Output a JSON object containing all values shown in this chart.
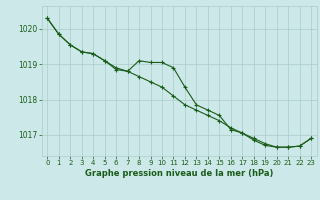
{
  "line1_x": [
    0,
    1,
    2,
    3,
    4,
    5,
    6,
    7,
    8,
    9,
    10,
    11,
    12,
    13,
    14,
    15,
    16,
    17,
    18,
    19,
    20,
    21,
    22,
    23
  ],
  "line1_y": [
    1020.3,
    1019.85,
    1019.55,
    1019.35,
    1019.3,
    1019.1,
    1018.9,
    1018.8,
    1018.65,
    1018.5,
    1018.35,
    1018.1,
    1017.85,
    1017.7,
    1017.55,
    1017.4,
    1017.2,
    1017.05,
    1016.9,
    1016.75,
    1016.65,
    1016.65,
    1016.68,
    1016.9
  ],
  "line2_x": [
    0,
    1,
    2,
    3,
    4,
    5,
    6,
    7,
    8,
    9,
    10,
    11,
    12,
    13,
    14,
    15,
    16,
    17,
    18,
    19,
    20,
    21,
    22,
    23
  ],
  "line2_y": [
    1020.3,
    1019.85,
    1019.55,
    1019.35,
    1019.3,
    1019.1,
    1018.85,
    1018.8,
    1019.1,
    1019.05,
    1019.05,
    1018.9,
    1018.35,
    1017.85,
    1017.7,
    1017.55,
    1017.15,
    1017.05,
    1016.85,
    1016.7,
    1016.65,
    1016.65,
    1016.68,
    1016.9
  ],
  "bg_color": "#cce8e8",
  "grid_color": "#aacccc",
  "line_color": "#1a5c1a",
  "marker": "+",
  "xlabel": "Graphe pression niveau de la mer (hPa)",
  "xlabel_color": "#1a5c1a",
  "tick_color": "#1a5c1a",
  "ylim": [
    1016.4,
    1020.65
  ],
  "xlim": [
    -0.5,
    23.5
  ],
  "yticks": [
    1017,
    1018,
    1019,
    1020
  ],
  "xticks": [
    0,
    1,
    2,
    3,
    4,
    5,
    6,
    7,
    8,
    9,
    10,
    11,
    12,
    13,
    14,
    15,
    16,
    17,
    18,
    19,
    20,
    21,
    22,
    23
  ]
}
